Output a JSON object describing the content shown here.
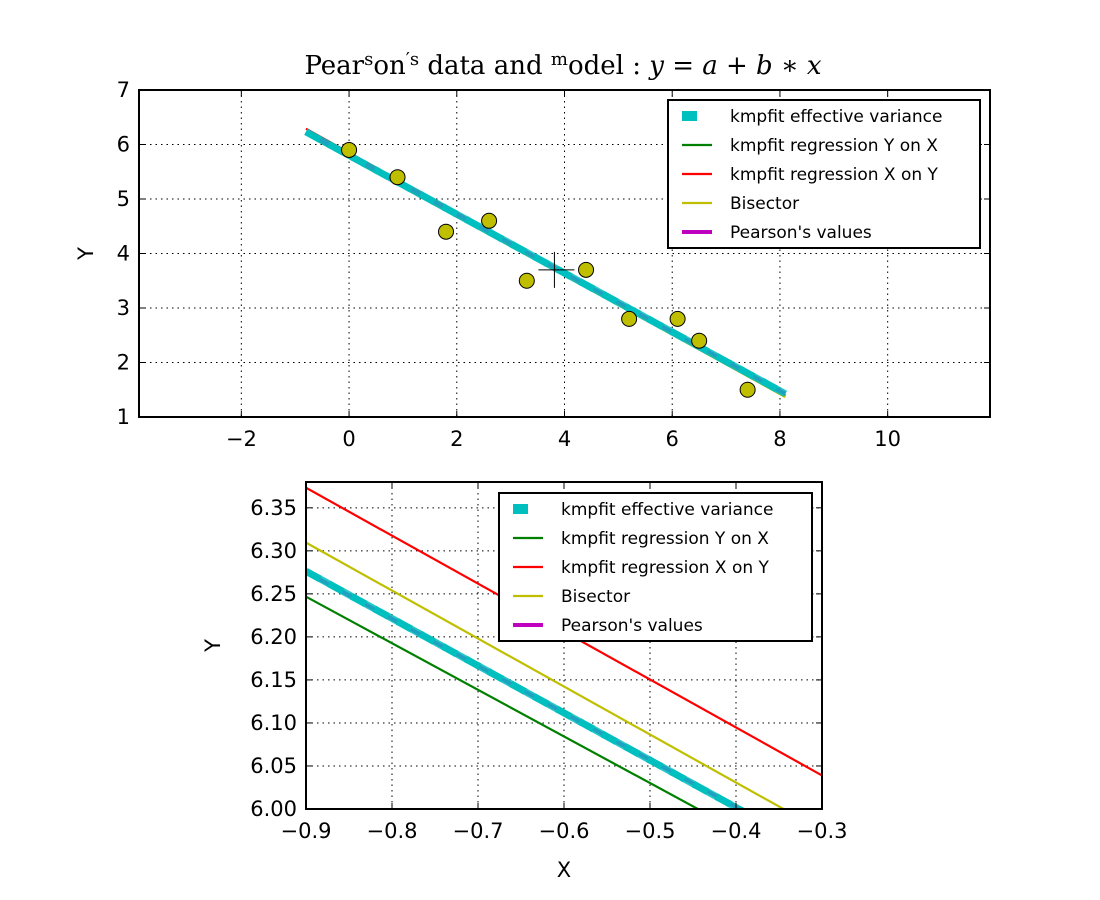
{
  "figure": {
    "title": {
      "p1": "Pear",
      "sup1": "s",
      "p2": "on",
      "sup2": "′s",
      "p3": " data and ",
      "sup3": "m",
      "p4": "odel : ",
      "math": "y = a + b ∗ x"
    }
  },
  "chart_data": [
    {
      "type": "scatter",
      "xlabel": "",
      "ylabel": "Y",
      "xlim": [
        -3.9,
        11.9
      ],
      "ylim": [
        1,
        7
      ],
      "xticks": [
        -2,
        0,
        2,
        4,
        6,
        8,
        10
      ],
      "xtick_labels": [
        "−2",
        "0",
        "2",
        "4",
        "6",
        "8",
        "10"
      ],
      "yticks": [
        1,
        2,
        3,
        4,
        5,
        6,
        7
      ],
      "ytick_labels": [
        "1",
        "2",
        "3",
        "4",
        "5",
        "6",
        "7"
      ],
      "grid": true,
      "legend_position": "top-right",
      "points": {
        "x": [
          0.0,
          0.9,
          1.8,
          2.6,
          3.3,
          4.4,
          5.2,
          6.1,
          6.5,
          7.4
        ],
        "y": [
          5.9,
          5.4,
          4.4,
          4.6,
          3.5,
          3.7,
          2.8,
          2.8,
          2.4,
          1.5
        ],
        "color": "#bfbf00"
      },
      "mean_marker": {
        "x": 3.85,
        "y": 3.7
      },
      "series": [
        {
          "name": "kmpfit effective variance",
          "a": 5.8,
          "b": -0.54,
          "x_range": [
            -0.8,
            8.1
          ],
          "color": "#00bfbf",
          "style": "dashed"
        },
        {
          "name": "kmpfit regression Y on X",
          "a": 5.76,
          "b": -0.54,
          "x_range": [
            -0.8,
            8.1
          ],
          "color": "#008000",
          "style": "solid"
        },
        {
          "name": "kmpfit regression X on Y",
          "a": 5.85,
          "b": -0.55,
          "x_range": [
            -0.8,
            8.1
          ],
          "color": "#ff0000",
          "style": "solid"
        },
        {
          "name": "Bisector",
          "a": 5.78,
          "b": -0.545,
          "x_range": [
            -0.8,
            8.1
          ],
          "color": "#bfbf00",
          "style": "solid"
        },
        {
          "name": "Pearson's values",
          "a": 5.8,
          "b": -0.54,
          "x_range": [
            -0.8,
            8.1
          ],
          "color": "#bf00bf",
          "style": "solid"
        }
      ]
    },
    {
      "type": "line",
      "xlabel": "X",
      "ylabel": "Y",
      "xlim": [
        -0.9,
        -0.3
      ],
      "ylim": [
        6.0,
        6.38
      ],
      "xticks": [
        -0.9,
        -0.8,
        -0.7,
        -0.6,
        -0.5,
        -0.4,
        -0.3
      ],
      "xtick_labels": [
        "−0.9",
        "−0.8",
        "−0.7",
        "−0.6",
        "−0.5",
        "−0.4",
        "−0.3"
      ],
      "yticks": [
        6.0,
        6.05,
        6.1,
        6.15,
        6.2,
        6.25,
        6.3,
        6.35
      ],
      "ytick_labels": [
        "6.00",
        "6.05",
        "6.10",
        "6.15",
        "6.20",
        "6.25",
        "6.30",
        "6.35"
      ],
      "grid": true,
      "legend_position": "top-right",
      "series": [
        {
          "name": "kmpfit effective variance",
          "a": 5.7823,
          "b": -0.5489,
          "color": "#00bfbf",
          "style": "dashed"
        },
        {
          "name": "kmpfit regression Y on X",
          "a": 5.7594,
          "b": -0.5415,
          "color": "#008000",
          "style": "solid"
        },
        {
          "name": "kmpfit regression X on Y",
          "a": 5.8718,
          "b": -0.5573,
          "color": "#ff0000",
          "style": "solid"
        },
        {
          "name": "Bisector",
          "a": 5.8077,
          "b": -0.5577,
          "color": "#bfbf00",
          "style": "solid"
        },
        {
          "name": "Pearson's values",
          "a": 5.7837,
          "b": -0.5466,
          "color": "#bf00bf",
          "style": "solid"
        }
      ]
    }
  ]
}
